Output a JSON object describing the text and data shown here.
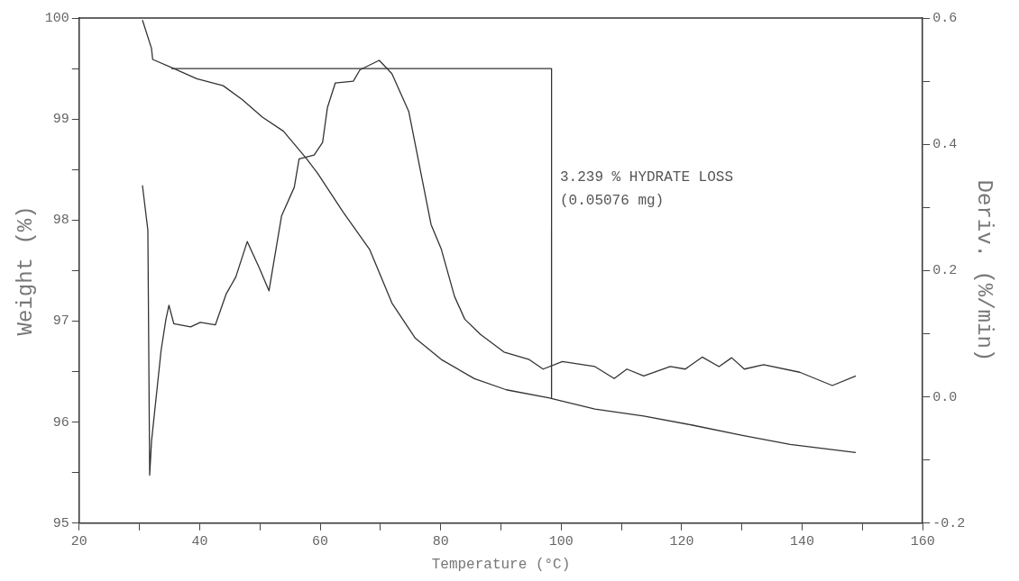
{
  "chart_data": {
    "type": "line",
    "xlabel": "Temperature (°C)",
    "ylabel": "Weight (%)",
    "y2label": "Deriv. (%/min)",
    "xlim": [
      20,
      160
    ],
    "xticks": [
      20,
      {
        "value": 30,
        "label": null
      },
      40,
      {
        "value": 50,
        "label": null
      },
      60,
      {
        "value": 70,
        "label": null
      },
      80,
      {
        "value": 90,
        "label": null
      },
      100,
      {
        "value": 110,
        "label": null
      },
      120,
      {
        "value": 130,
        "label": null
      },
      140,
      {
        "value": 150,
        "label": null
      },
      160
    ],
    "ylim": [
      95,
      100
    ],
    "yticks": [
      95,
      {
        "value": 95.5,
        "label": null
      },
      96,
      {
        "value": 96.5,
        "label": null
      },
      97,
      {
        "value": 97.5,
        "label": null
      },
      98,
      {
        "value": 98.5,
        "label": null
      },
      99,
      {
        "value": 99.5,
        "label": null
      },
      100
    ],
    "y2lim": [
      -0.2,
      0.6
    ],
    "y2ticks": [
      -0.2,
      {
        "value": -0.1,
        "label": null
      },
      {
        "value": 0,
        "label": "0.0"
      },
      {
        "value": 0.1,
        "label": null
      },
      0.2,
      {
        "value": 0.3,
        "label": null
      },
      0.4,
      {
        "value": 0.5,
        "label": null
      },
      0.6
    ],
    "marker": "none",
    "grid": false,
    "annotations": [
      "3.239 % HYDRATE LOSS",
      "(0.05076 mg)"
    ],
    "series": [
      {
        "color": "#333333",
        "x": [
          30.5,
          32.0,
          32.2,
          35.3,
          39.5,
          43.9,
          47.1,
          50.4,
          53.9,
          57.7,
          59.6,
          63.8,
          68.2,
          71.9,
          75.8,
          80.1,
          85.6,
          90.9,
          97.9,
          105.6,
          113.7,
          121.8,
          129.9,
          138.0,
          148.9
        ],
        "values": [
          99.98,
          99.7,
          99.59,
          99.51,
          99.4,
          99.33,
          99.19,
          99.02,
          98.88,
          98.61,
          98.46,
          98.08,
          97.71,
          97.18,
          96.83,
          96.62,
          96.43,
          96.32,
          96.24,
          96.13,
          96.06,
          95.97,
          95.87,
          95.78,
          95.7
        ]
      },
      {
        "color": "#333333",
        "axis": "y2",
        "x": [
          30.5,
          31.4,
          31.7,
          32.0,
          33.6,
          34.4,
          34.9,
          35.7,
          38.5,
          40.1,
          42.6,
          44.4,
          46.0,
          47.9,
          49.9,
          51.5,
          53.6,
          55.7,
          56.5,
          59.0,
          60.4,
          61.2,
          62.5,
          65.5,
          66.6,
          69.8,
          71.9,
          74.7,
          78.4,
          80.1,
          82.3,
          84.0,
          86.6,
          90.5,
          94.7,
          97.0,
          100.2,
          105.6,
          108.8,
          110.9,
          113.7,
          118.1,
          120.6,
          123.4,
          126.2,
          128.3,
          130.4,
          133.6,
          139.6,
          145.0,
          148.9
        ],
        "values": [
          0.335,
          0.264,
          -0.124,
          -0.071,
          0.074,
          0.123,
          0.145,
          0.116,
          0.111,
          0.118,
          0.114,
          0.163,
          0.19,
          0.246,
          0.204,
          0.168,
          0.287,
          0.332,
          0.377,
          0.383,
          0.403,
          0.458,
          0.497,
          0.5,
          0.518,
          0.533,
          0.512,
          0.452,
          0.273,
          0.234,
          0.159,
          0.123,
          0.099,
          0.071,
          0.059,
          0.044,
          0.056,
          0.048,
          0.029,
          0.044,
          0.033,
          0.048,
          0.044,
          0.063,
          0.048,
          0.062,
          0.044,
          0.051,
          0.039,
          0.018,
          0.033
        ]
      },
      {
        "color": "#333333",
        "x": [
          35.3,
          98.4,
          98.4
        ],
        "values": [
          99.5,
          99.5,
          96.24
        ]
      }
    ]
  }
}
